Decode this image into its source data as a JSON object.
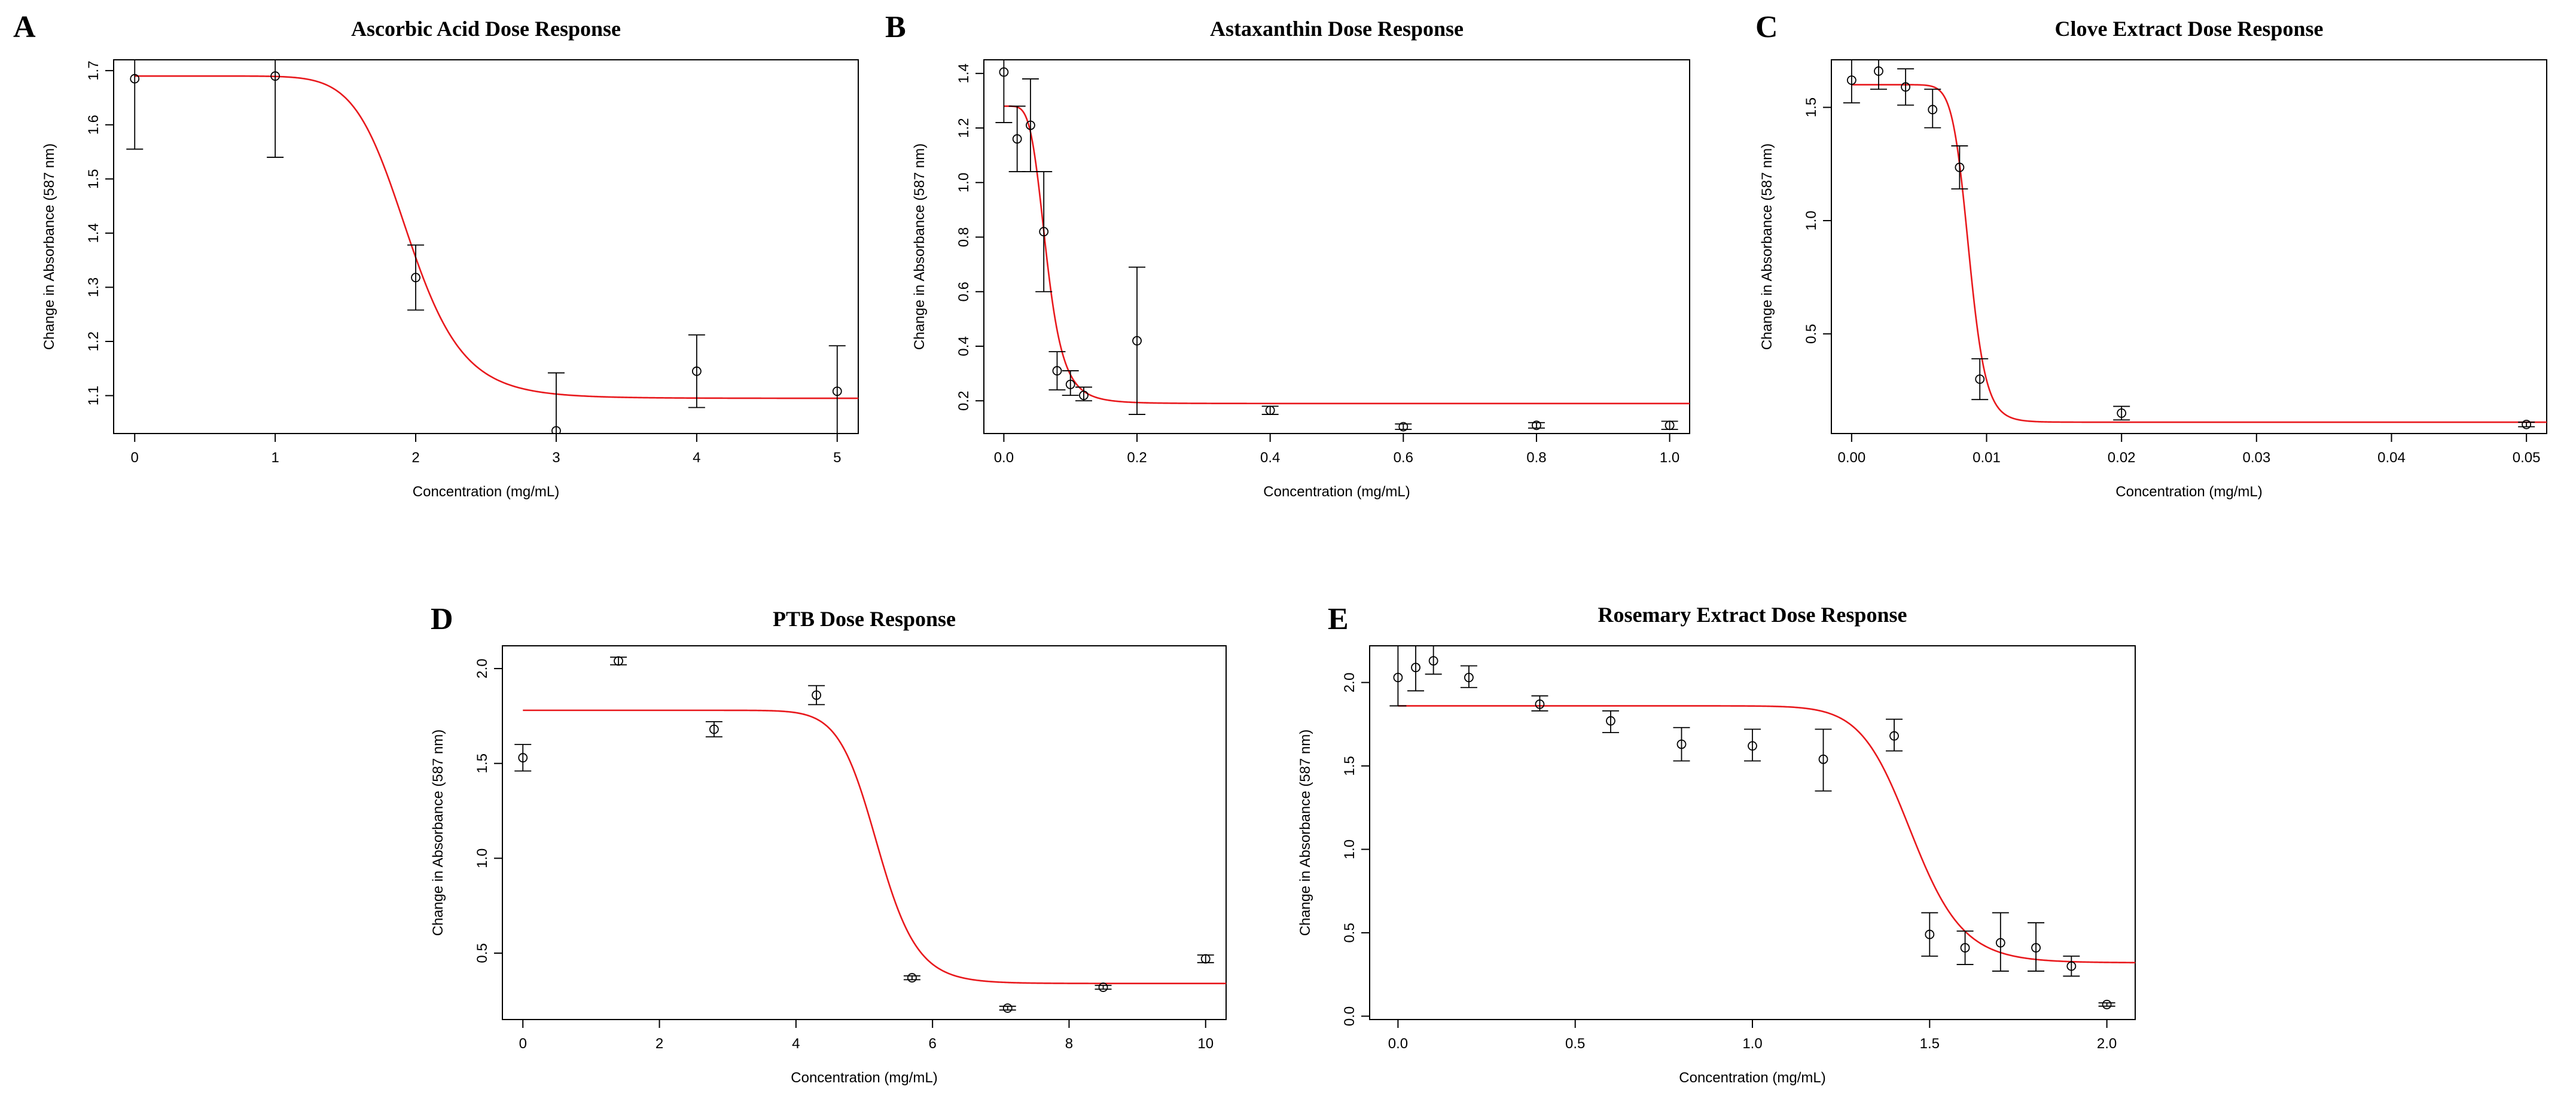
{
  "chart_data": [
    {
      "letter": "A",
      "type": "scatter",
      "title": "Ascorbic Acid Dose Response",
      "xlabel": "Concentration (mg/mL)",
      "ylabel": "Change in Absorbance (587 nm)",
      "xlim": [
        -0.15,
        5.15
      ],
      "ylim": [
        1.03,
        1.72
      ],
      "xticks": [
        0,
        1,
        2,
        3,
        4,
        5
      ],
      "xtick_labels": [
        "0",
        "1",
        "2",
        "3",
        "4",
        "5"
      ],
      "yticks": [
        1.1,
        1.2,
        1.3,
        1.4,
        1.5,
        1.6,
        1.7
      ],
      "ytick_labels": [
        "1.1",
        "1.2",
        "1.3",
        "1.4",
        "1.5",
        "1.6",
        "1.7"
      ],
      "points": [
        {
          "x": 0,
          "y": 1.685,
          "lo": 1.555,
          "hi": 1.72
        },
        {
          "x": 1,
          "y": 1.69,
          "lo": 1.54,
          "hi": 1.72
        },
        {
          "x": 2,
          "y": 1.318,
          "lo": 1.258,
          "hi": 1.378
        },
        {
          "x": 3,
          "y": 1.035,
          "lo": 0.95,
          "hi": 1.142
        },
        {
          "x": 4,
          "y": 1.145,
          "lo": 1.078,
          "hi": 1.212
        },
        {
          "x": 5,
          "y": 1.108,
          "lo": 1.025,
          "hi": 1.192
        }
      ],
      "fit": {
        "top": 1.69,
        "bottom": 1.095,
        "ec50": 1.95,
        "slope": 10
      },
      "fit_color": "#e8181c"
    },
    {
      "letter": "B",
      "type": "scatter",
      "title": "Astaxanthin Dose Response",
      "xlabel": "Concentration (mg/mL)",
      "ylabel": "Change in Absorbance (587 nm)",
      "xlim": [
        -0.03,
        1.03
      ],
      "ylim": [
        0.08,
        1.45
      ],
      "xticks": [
        0,
        0.2,
        0.4,
        0.6,
        0.8,
        1.0
      ],
      "xtick_labels": [
        "0.0",
        "0.2",
        "0.4",
        "0.6",
        "0.8",
        "1.0"
      ],
      "yticks": [
        0.2,
        0.4,
        0.6,
        0.8,
        1.0,
        1.2,
        1.4
      ],
      "ytick_labels": [
        "0.2",
        "0.4",
        "0.6",
        "0.8",
        "1.0",
        "1.2",
        "1.4"
      ],
      "points": [
        {
          "x": 0.0,
          "y": 1.405,
          "lo": 1.22,
          "hi": 1.45
        },
        {
          "x": 0.02,
          "y": 1.16,
          "lo": 1.04,
          "hi": 1.28
        },
        {
          "x": 0.04,
          "y": 1.21,
          "lo": 1.04,
          "hi": 1.38
        },
        {
          "x": 0.06,
          "y": 0.82,
          "lo": 0.6,
          "hi": 1.04
        },
        {
          "x": 0.08,
          "y": 0.31,
          "lo": 0.24,
          "hi": 0.38
        },
        {
          "x": 0.1,
          "y": 0.26,
          "lo": 0.22,
          "hi": 0.31
        },
        {
          "x": 0.12,
          "y": 0.22,
          "lo": 0.2,
          "hi": 0.25
        },
        {
          "x": 0.2,
          "y": 0.42,
          "lo": 0.15,
          "hi": 0.69
        },
        {
          "x": 0.4,
          "y": 0.165,
          "lo": 0.15,
          "hi": 0.18
        },
        {
          "x": 0.6,
          "y": 0.105,
          "lo": 0.095,
          "hi": 0.115
        },
        {
          "x": 0.8,
          "y": 0.11,
          "lo": 0.1,
          "hi": 0.12
        },
        {
          "x": 1.0,
          "y": 0.11,
          "lo": 0.095,
          "hi": 0.125
        }
      ],
      "fit": {
        "top": 1.28,
        "bottom": 0.19,
        "ec50": 0.064,
        "slope": 5
      },
      "fit_color": "#e8181c"
    },
    {
      "letter": "C",
      "type": "scatter",
      "title": "Clove Extract Dose Response",
      "xlabel": "Concentration (mg/mL)",
      "ylabel": "Change in Absorbance (587 nm)",
      "xlim": [
        -0.0015,
        0.0515
      ],
      "ylim": [
        0.06,
        1.71
      ],
      "xticks": [
        0,
        0.01,
        0.02,
        0.03,
        0.04,
        0.05
      ],
      "xtick_labels": [
        "0.00",
        "0.01",
        "0.02",
        "0.03",
        "0.04",
        "0.05"
      ],
      "yticks": [
        0.5,
        1.0,
        1.5
      ],
      "ytick_labels": [
        "0.5",
        "1.0",
        "1.5"
      ],
      "points": [
        {
          "x": 0.0,
          "y": 1.62,
          "lo": 1.52,
          "hi": 1.72
        },
        {
          "x": 0.002,
          "y": 1.66,
          "lo": 1.58,
          "hi": 1.72
        },
        {
          "x": 0.004,
          "y": 1.59,
          "lo": 1.51,
          "hi": 1.67
        },
        {
          "x": 0.006,
          "y": 1.49,
          "lo": 1.41,
          "hi": 1.58
        },
        {
          "x": 0.008,
          "y": 1.235,
          "lo": 1.14,
          "hi": 1.33
        },
        {
          "x": 0.0095,
          "y": 0.3,
          "lo": 0.21,
          "hi": 0.39
        },
        {
          "x": 0.02,
          "y": 0.15,
          "lo": 0.12,
          "hi": 0.18
        },
        {
          "x": 0.05,
          "y": 0.1,
          "lo": 0.09,
          "hi": 0.11
        }
      ],
      "fit": {
        "top": 1.6,
        "bottom": 0.11,
        "ec50": 0.0087,
        "slope": 14
      },
      "fit_color": "#e8181c"
    },
    {
      "letter": "D",
      "type": "scatter",
      "title": "PTB Dose Response",
      "xlabel": "Concentration (mg/mL)",
      "ylabel": "Change in Absorbance (587 nm)",
      "xlim": [
        -0.3,
        10.3
      ],
      "ylim": [
        0.15,
        2.12
      ],
      "xticks": [
        0,
        2,
        4,
        6,
        8,
        10
      ],
      "xtick_labels": [
        "0",
        "2",
        "4",
        "6",
        "8",
        "10"
      ],
      "yticks": [
        0.5,
        1.0,
        1.5,
        2.0
      ],
      "ytick_labels": [
        "0.5",
        "1.0",
        "1.5",
        "2.0"
      ],
      "points": [
        {
          "x": 0.0,
          "y": 1.53,
          "lo": 1.46,
          "hi": 1.6
        },
        {
          "x": 1.4,
          "y": 2.04,
          "lo": 2.02,
          "hi": 2.06
        },
        {
          "x": 2.8,
          "y": 1.68,
          "lo": 1.64,
          "hi": 1.72
        },
        {
          "x": 4.3,
          "y": 1.86,
          "lo": 1.81,
          "hi": 1.91
        },
        {
          "x": 5.7,
          "y": 0.37,
          "lo": 0.36,
          "hi": 0.38
        },
        {
          "x": 7.1,
          "y": 0.21,
          "lo": 0.2,
          "hi": 0.22
        },
        {
          "x": 8.5,
          "y": 0.32,
          "lo": 0.31,
          "hi": 0.33
        },
        {
          "x": 10.0,
          "y": 0.47,
          "lo": 0.45,
          "hi": 0.49
        }
      ],
      "fit": {
        "top": 1.78,
        "bottom": 0.34,
        "ec50": 5.2,
        "slope": 18
      },
      "fit_color": "#e8181c"
    },
    {
      "letter": "E",
      "type": "scatter",
      "title": "Rosemary Extract Dose Response",
      "xlabel": "Concentration (mg/mL)",
      "ylabel": "Change in Absorbance (587 nm)",
      "xlim": [
        -0.08,
        2.08
      ],
      "ylim": [
        -0.02,
        2.22
      ],
      "xticks": [
        0,
        0.5,
        1.0,
        1.5,
        2.0
      ],
      "xtick_labels": [
        "0.0",
        "0.5",
        "1.0",
        "1.5",
        "2.0"
      ],
      "yticks": [
        0.0,
        0.5,
        1.0,
        1.5,
        2.0
      ],
      "ytick_labels": [
        "0.0",
        "0.5",
        "1.0",
        "1.5",
        "2.0"
      ],
      "points": [
        {
          "x": 0.0,
          "y": 2.03,
          "lo": 1.86,
          "hi": 2.22
        },
        {
          "x": 0.05,
          "y": 2.09,
          "lo": 1.95,
          "hi": 2.22
        },
        {
          "x": 0.1,
          "y": 2.13,
          "lo": 2.05,
          "hi": 2.22
        },
        {
          "x": 0.2,
          "y": 2.03,
          "lo": 1.97,
          "hi": 2.1
        },
        {
          "x": 0.4,
          "y": 1.87,
          "lo": 1.83,
          "hi": 1.92
        },
        {
          "x": 0.6,
          "y": 1.77,
          "lo": 1.7,
          "hi": 1.83
        },
        {
          "x": 0.8,
          "y": 1.63,
          "lo": 1.53,
          "hi": 1.73
        },
        {
          "x": 1.0,
          "y": 1.62,
          "lo": 1.53,
          "hi": 1.72
        },
        {
          "x": 1.2,
          "y": 1.54,
          "lo": 1.35,
          "hi": 1.72
        },
        {
          "x": 1.4,
          "y": 1.68,
          "lo": 1.59,
          "hi": 1.78
        },
        {
          "x": 1.5,
          "y": 0.49,
          "lo": 0.36,
          "hi": 0.62
        },
        {
          "x": 1.6,
          "y": 0.41,
          "lo": 0.31,
          "hi": 0.51
        },
        {
          "x": 1.7,
          "y": 0.44,
          "lo": 0.27,
          "hi": 0.62
        },
        {
          "x": 1.8,
          "y": 0.41,
          "lo": 0.27,
          "hi": 0.56
        },
        {
          "x": 1.9,
          "y": 0.3,
          "lo": 0.24,
          "hi": 0.36
        },
        {
          "x": 2.0,
          "y": 0.07,
          "lo": 0.06,
          "hi": 0.08
        }
      ],
      "fit": {
        "top": 1.86,
        "bottom": 0.32,
        "ec50": 1.45,
        "slope": 20
      },
      "fit_color": "#e8181c"
    }
  ]
}
